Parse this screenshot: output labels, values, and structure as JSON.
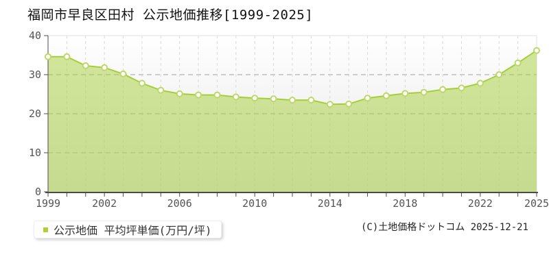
{
  "title": "福岡市早良区田村 公示地価推移[1999-2025]",
  "legend": {
    "label": "公示地価 平均坪単価(万円/坪)",
    "swatch_color": "#aed133"
  },
  "copyright": "(C)土地価格ドットコム 2025-12-21",
  "chart_data": {
    "type": "area",
    "title": "福岡市早良区田村 公示地価推移[1999-2025]",
    "xlabel": "",
    "ylabel": "",
    "x": [
      1999,
      2000,
      2001,
      2002,
      2003,
      2004,
      2005,
      2006,
      2007,
      2008,
      2009,
      2010,
      2011,
      2012,
      2013,
      2014,
      2015,
      2016,
      2017,
      2018,
      2019,
      2020,
      2021,
      2022,
      2023,
      2024,
      2025
    ],
    "series": [
      {
        "name": "公示地価 平均坪単価(万円/坪)",
        "values": [
          34.6,
          34.6,
          32.3,
          31.8,
          30.2,
          27.8,
          26.0,
          25.1,
          24.8,
          24.8,
          24.3,
          24.0,
          23.8,
          23.5,
          23.5,
          22.4,
          22.5,
          24.0,
          24.6,
          25.2,
          25.5,
          26.2,
          26.6,
          27.8,
          30.0,
          33.0,
          36.2
        ]
      }
    ],
    "ylim": [
      0,
      40
    ],
    "yticks": [
      0,
      10,
      20,
      30,
      40
    ],
    "xtick_years_labeled": [
      1999,
      2002,
      2006,
      2010,
      2014,
      2018,
      2022,
      2025
    ],
    "grid": true,
    "legend_position": "bottom-left",
    "colors": {
      "line": "#a5ce39",
      "fill": "#a5ce39",
      "fill_opacity": 0.5,
      "marker_fill": "#ffffff",
      "marker_stroke": "#bdd867",
      "grid_vertical": "#d9d9d9",
      "grid_horizontal": "#cccccc",
      "axis": "#4a4a4a",
      "tick_label": "#545454",
      "plot_bg_top": "#ffffff",
      "plot_bg_bottom": "#e6e6e6",
      "plot_border": "#e2e2e2"
    }
  }
}
